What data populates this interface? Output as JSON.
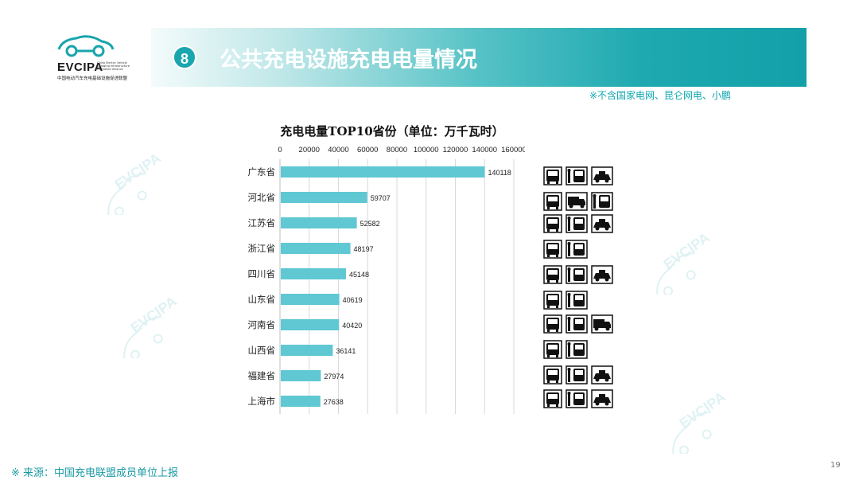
{
  "logo": {
    "brand": "EVCIPA",
    "subtitle_en": "China Electric Vehicle Charging Infrastructure Promotion Alliance",
    "subtitle_cn": "中国电动汽车充电基础设施促进联盟"
  },
  "header": {
    "badge": "8",
    "title": "公共充电设施充电电量情况",
    "note": "※不含国家电网、昆仑网电、小鹏"
  },
  "chart_data": {
    "type": "bar",
    "orientation": "horizontal",
    "title": "充电电量TOP10省份（单位：万千瓦时）",
    "categories": [
      "广东省",
      "河北省",
      "江苏省",
      "浙江省",
      "四川省",
      "山东省",
      "河南省",
      "山西省",
      "福建省",
      "上海市"
    ],
    "values": [
      140118,
      59707,
      52582,
      48197,
      45148,
      40619,
      40420,
      36141,
      27974,
      27638
    ],
    "xlim": [
      0,
      160000
    ],
    "xticks": [
      0,
      20000,
      40000,
      60000,
      80000,
      100000,
      120000,
      140000,
      160000
    ],
    "axis_position": "top",
    "grid": true,
    "bar_color": "#5fc8d3"
  },
  "vehicle_icons": {
    "rows": [
      [
        "bus-icon",
        "charger-bus-icon",
        "taxi-icon"
      ],
      [
        "bus-icon",
        "truck-icon",
        "charger-bus-icon"
      ],
      [
        "bus-icon",
        "charger-bus-icon",
        "taxi-icon"
      ],
      [
        "bus-icon",
        "charger-bus-icon"
      ],
      [
        "bus-icon",
        "charger-bus-icon",
        "taxi-icon"
      ],
      [
        "bus-icon",
        "charger-bus-icon"
      ],
      [
        "bus-icon",
        "charger-bus-icon",
        "truck-icon"
      ],
      [
        "bus-icon",
        "charger-bus-icon"
      ],
      [
        "bus-icon",
        "charger-bus-icon",
        "taxi-icon"
      ],
      [
        "bus-icon",
        "charger-bus-icon",
        "taxi-icon"
      ]
    ]
  },
  "footer": {
    "source": "※ 来源：中国充电联盟成员单位上报",
    "page": "19"
  },
  "colors": {
    "accent": "#13a0a8",
    "bar": "#5fc8d3"
  }
}
